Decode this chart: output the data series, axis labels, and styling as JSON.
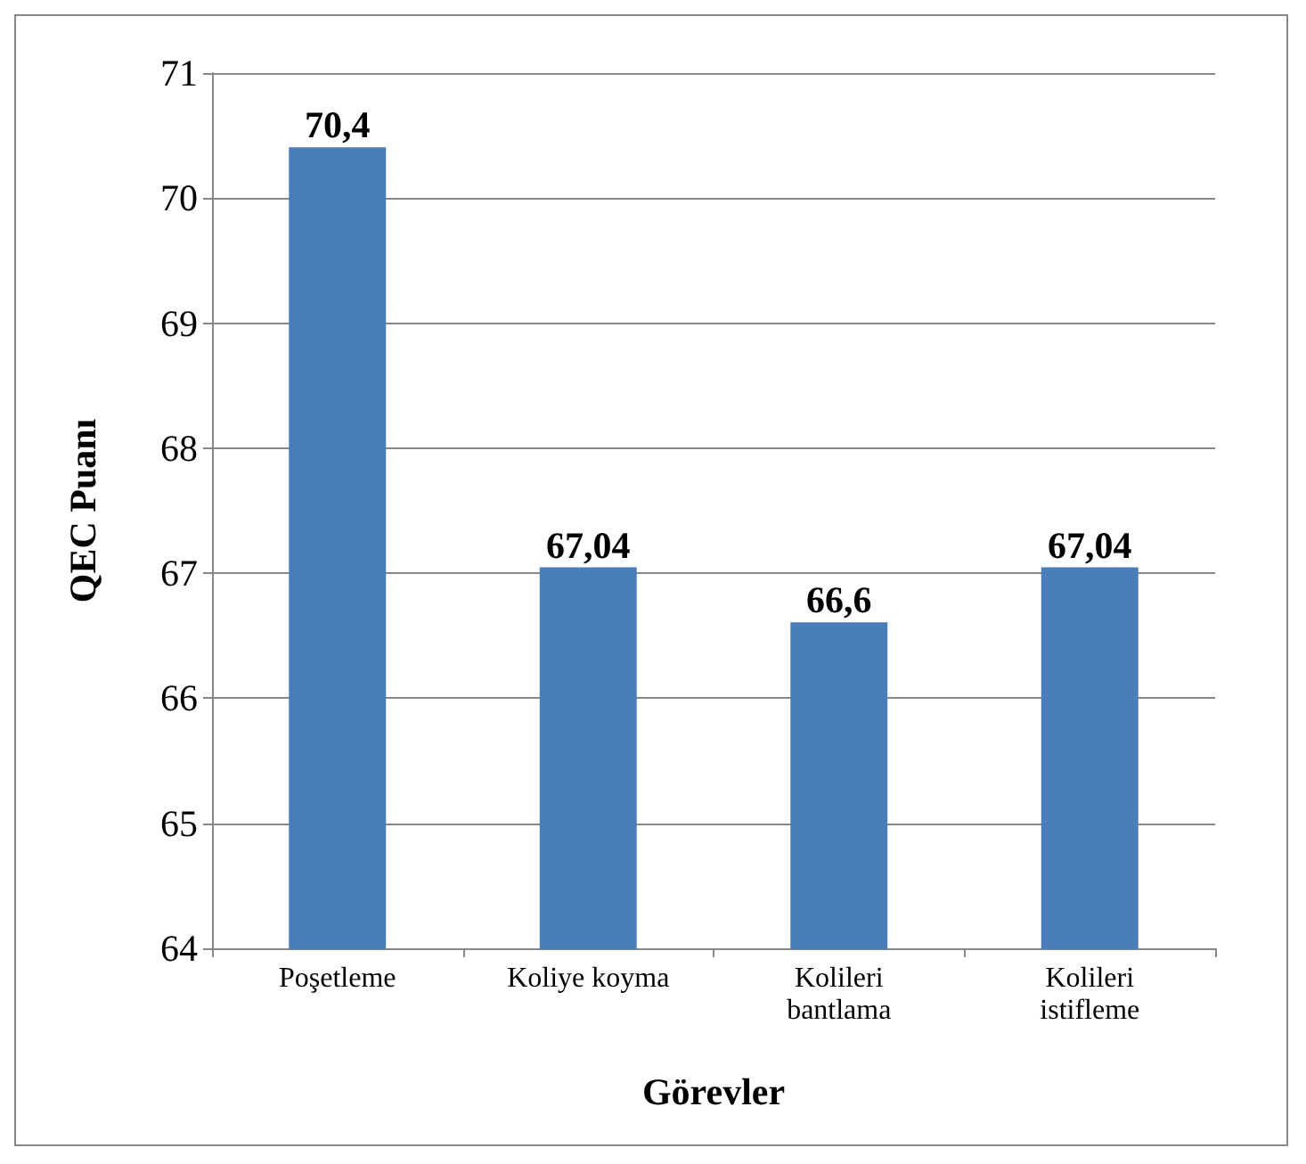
{
  "chart_data": {
    "type": "bar",
    "xlabel": "Görevler",
    "ylabel": "QEC Puanı",
    "categories": [
      "Poşetleme",
      "Koliye koyma",
      "Kolileri\nbantlama",
      "Kolileri\nistifleme"
    ],
    "values": [
      70.4,
      67.04,
      66.6,
      67.04
    ],
    "value_labels": [
      "70,4",
      "67,04",
      "66,6",
      "67,04"
    ],
    "color": "#4a7ebb",
    "ylim": [
      64,
      71
    ],
    "yticks": [
      64,
      65,
      66,
      67,
      68,
      69,
      70,
      71
    ],
    "grid": "y"
  }
}
